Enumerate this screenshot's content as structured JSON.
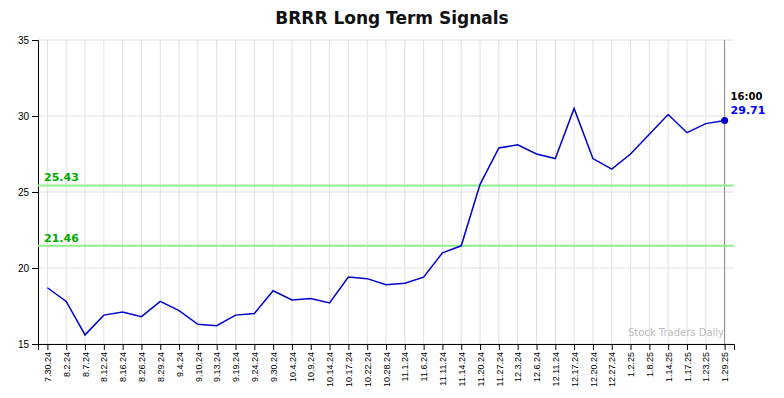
{
  "chart_data": {
    "type": "line",
    "title": "BRRR Long Term Signals",
    "categories": [
      "7.30.24",
      "8.2.24",
      "8.7.24",
      "8.12.24",
      "8.16.24",
      "8.26.24",
      "8.29.24",
      "9.4.24",
      "9.10.24",
      "9.13.24",
      "9.19.24",
      "9.24.24",
      "9.30.24",
      "10.4.24",
      "10.9.24",
      "10.14.24",
      "10.17.24",
      "10.22.24",
      "10.28.24",
      "11.1.24",
      "11.6.24",
      "11.11.24",
      "11.14.24",
      "11.20.24",
      "11.27.24",
      "12.3.24",
      "12.6.24",
      "12.11.24",
      "12.17.24",
      "12.20.24",
      "12.27.24",
      "1.2.25",
      "1.8.25",
      "1.14.25",
      "1.17.25",
      "1.23.25",
      "1.29.25"
    ],
    "values": [
      18.7,
      17.8,
      15.6,
      16.9,
      17.1,
      16.8,
      17.8,
      17.2,
      16.3,
      16.2,
      16.9,
      17.0,
      18.5,
      17.9,
      18.0,
      17.7,
      19.4,
      19.3,
      18.9,
      19.0,
      19.4,
      21.0,
      21.46,
      25.5,
      27.9,
      28.1,
      27.5,
      27.2,
      30.5,
      27.2,
      26.5,
      27.5,
      28.8,
      30.1,
      28.9,
      29.5,
      29.71
    ],
    "color": "#0000CC",
    "ylim": [
      15,
      35
    ],
    "yticks": [
      15,
      20,
      25,
      30,
      35
    ],
    "grid": true,
    "reference_lines": [
      {
        "value": 25.43,
        "label": "25.43",
        "color": "#90EE90",
        "label_color": "#00AA00"
      },
      {
        "value": 21.46,
        "label": "21.46",
        "color": "#90EE90",
        "label_color": "#00AA00"
      }
    ],
    "last_point": {
      "label": "16:00",
      "value_label": "29.71",
      "color": "#0000CC",
      "value_color": "blue"
    },
    "watermark": {
      "text": "Stock Traders Daily",
      "color": "#BBBBBB"
    }
  }
}
